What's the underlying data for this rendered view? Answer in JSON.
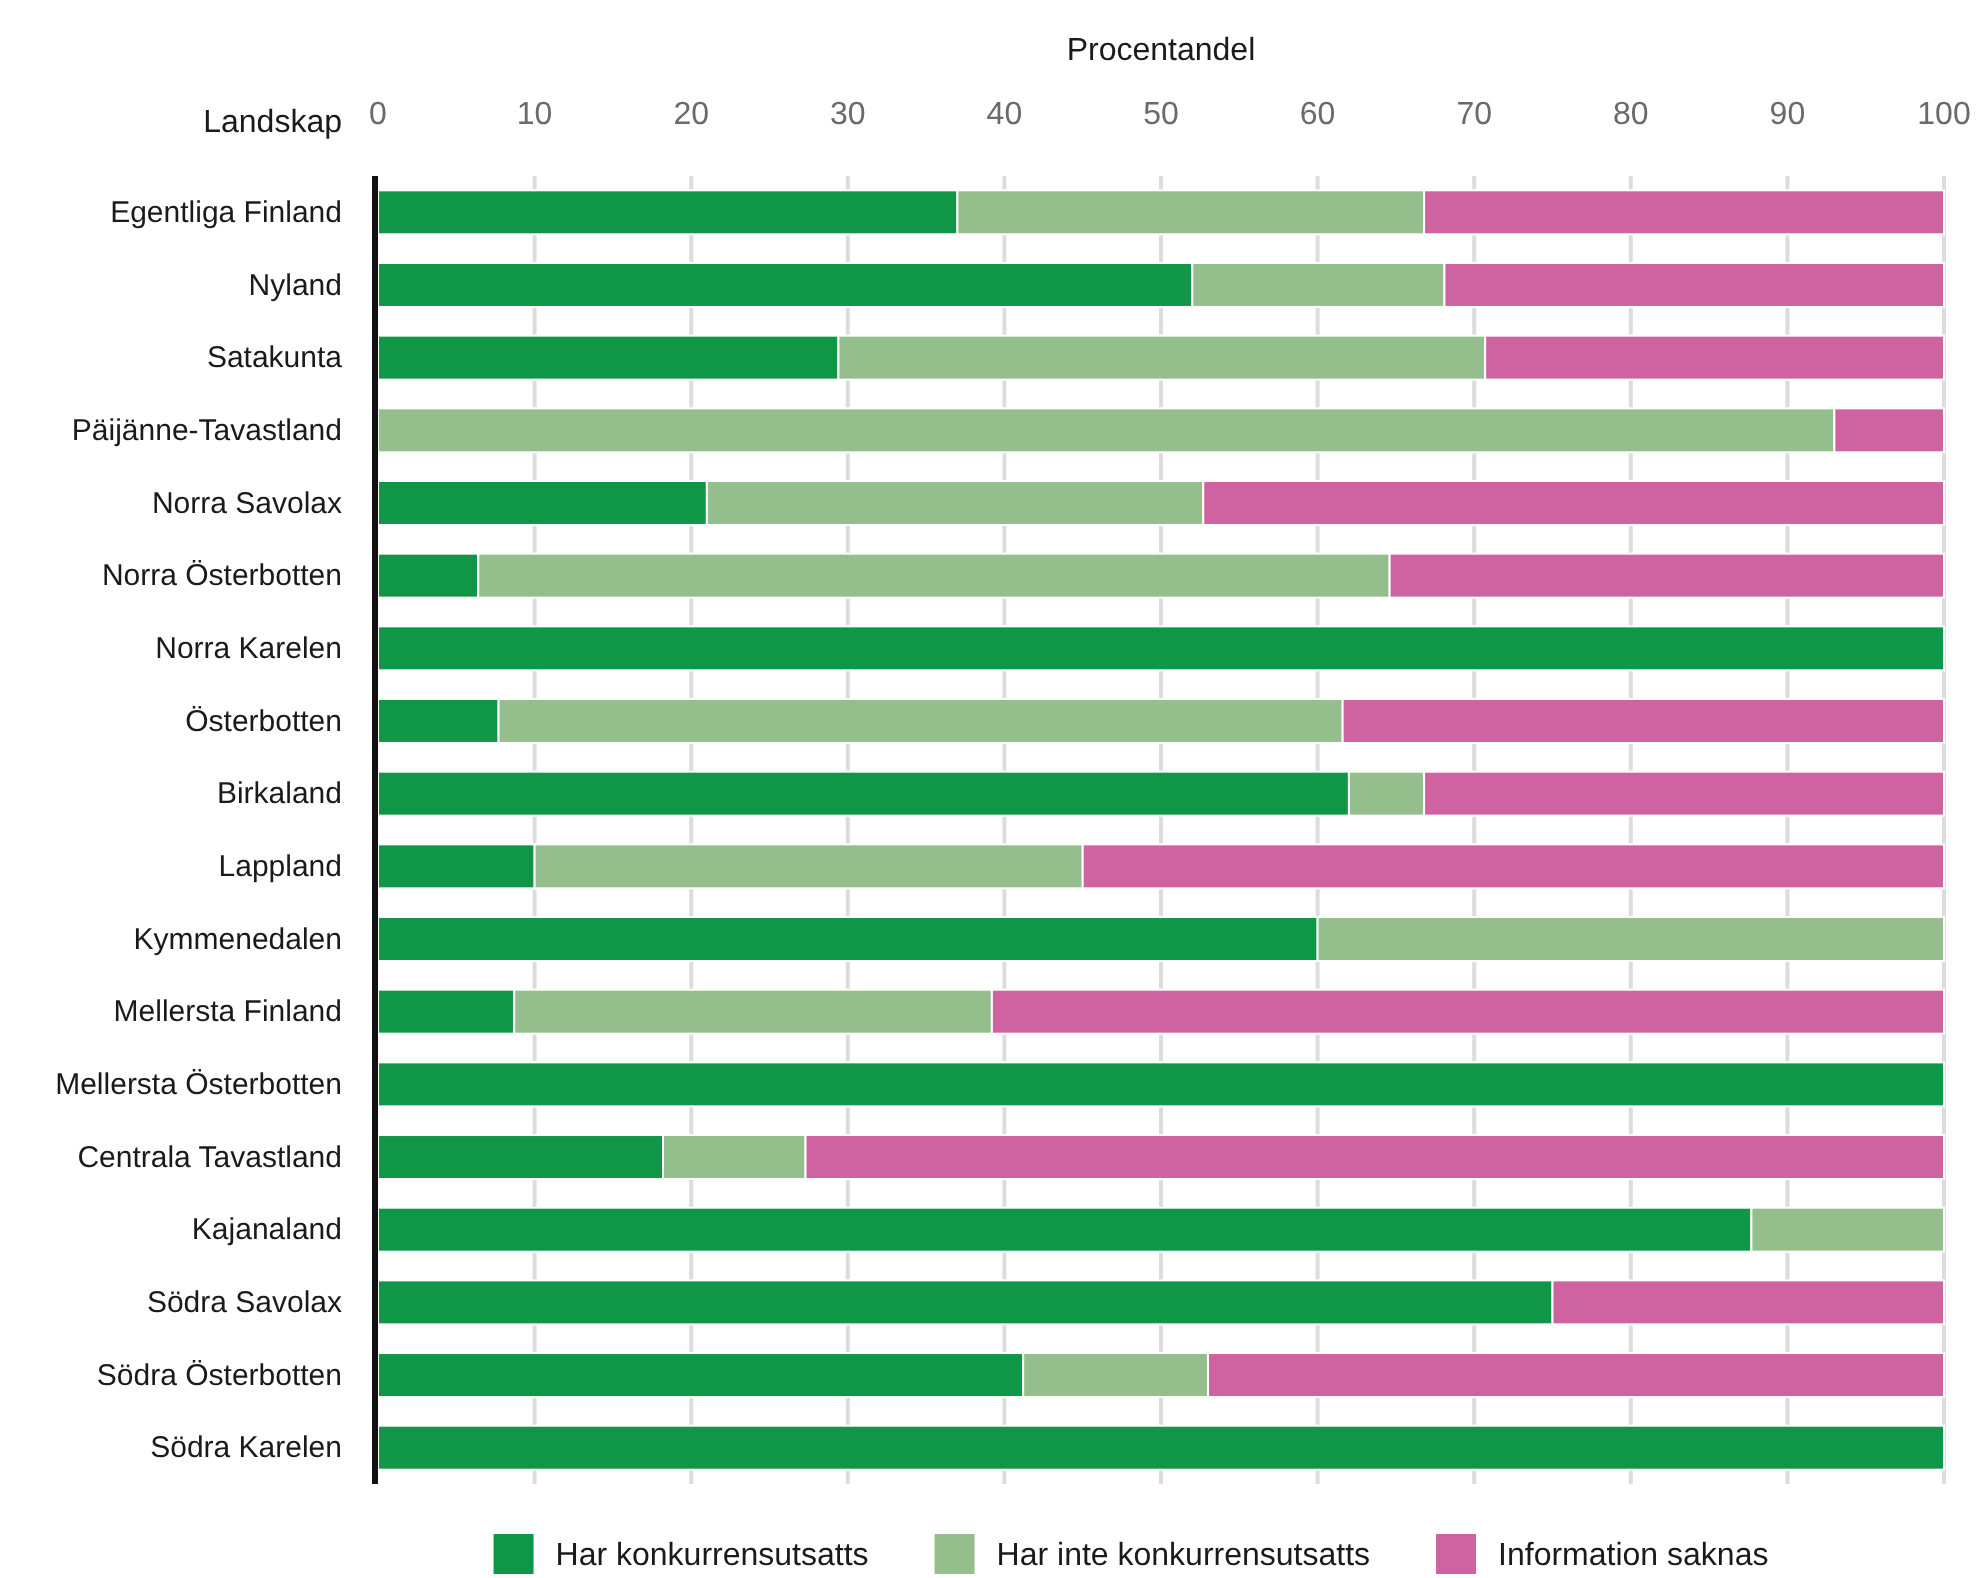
{
  "chart_data": {
    "type": "bar",
    "orientation": "horizontal",
    "stacked": true,
    "xlabel": "Procentandel",
    "ylabel": "Landskap",
    "categories": [
      "Egentliga Finland",
      "Nyland",
      "Satakunta",
      "Päijänne-Tavastland",
      "Norra Savolax",
      "Norra Österbotten",
      "Norra Karelen",
      "Österbotten",
      "Birkaland",
      "Lappland",
      "Kymmenedalen",
      "Mellersta Finland",
      "Mellersta Österbotten",
      "Centrala Tavastland",
      "Kajanaland",
      "Södra Savolax",
      "Södra Österbotten",
      "Södra Karelen"
    ],
    "series": [
      {
        "name": "Har konkurrensutsatts",
        "color": "#109647",
        "values": [
          37.0,
          52.0,
          29.4,
          0,
          21.0,
          6.4,
          100,
          7.7,
          62.0,
          10.0,
          60.0,
          8.7,
          100,
          18.2,
          87.7,
          75.0,
          41.2,
          100
        ]
      },
      {
        "name": "Har inte konkurrensutsatts",
        "color": "#94bf8c",
        "values": [
          29.8,
          16.1,
          41.3,
          93.0,
          31.7,
          58.2,
          0,
          53.9,
          4.8,
          35.0,
          40.0,
          30.5,
          0,
          9.1,
          12.3,
          0,
          11.8,
          0
        ]
      },
      {
        "name": "Information saknas",
        "color": "#cf62a1",
        "values": [
          33.2,
          31.9,
          29.3,
          7.0,
          47.3,
          35.4,
          0,
          38.4,
          33.2,
          55.0,
          0,
          60.8,
          0,
          72.7,
          0,
          25.0,
          47.0,
          0
        ]
      }
    ],
    "xlim": [
      0,
      100
    ],
    "xticks": [
      0,
      10,
      20,
      30,
      40,
      50,
      60,
      70,
      80,
      90,
      100
    ],
    "grid": "x",
    "legend": "bottom"
  }
}
